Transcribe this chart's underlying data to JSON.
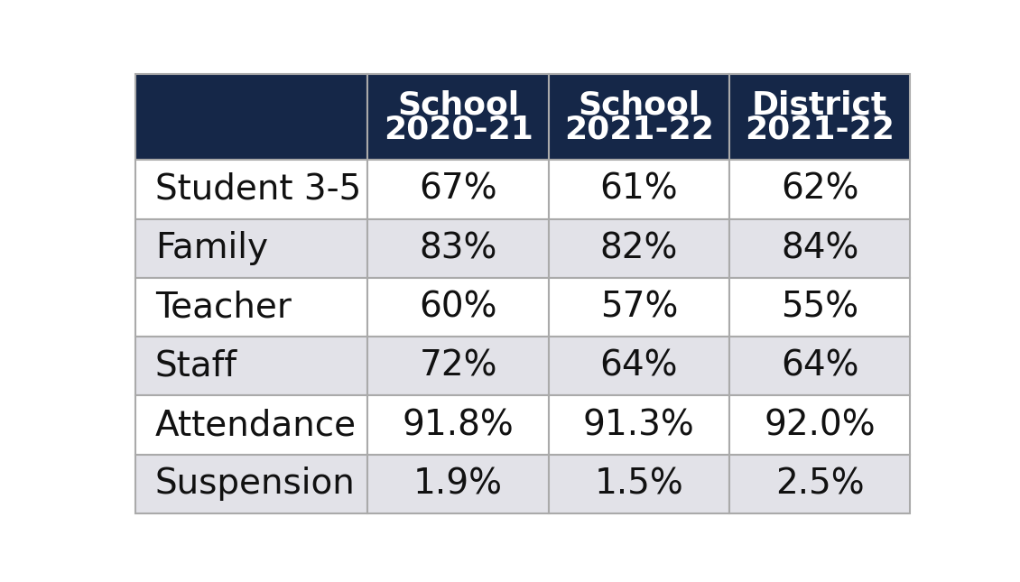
{
  "header_bg_color": "#152748",
  "header_text_color": "#ffffff",
  "row_labels": [
    "Student 3-5",
    "Family",
    "Teacher",
    "Staff",
    "Attendance",
    "Suspension"
  ],
  "col_headers_line1": [
    "School",
    "School",
    "District"
  ],
  "col_headers_line2": [
    "2020-21",
    "2021-22",
    "2021-22"
  ],
  "values": [
    [
      "67%",
      "61%",
      "62%"
    ],
    [
      "83%",
      "82%",
      "84%"
    ],
    [
      "60%",
      "57%",
      "55%"
    ],
    [
      "72%",
      "64%",
      "64%"
    ],
    [
      "91.8%",
      "91.3%",
      "92.0%"
    ],
    [
      "1.9%",
      "1.5%",
      "2.5%"
    ]
  ],
  "row_bg_even": "#ffffff",
  "row_bg_odd": "#e2e2e8",
  "data_text_color": "#111111",
  "border_color": "#aaaaaa",
  "header_fontsize": 26,
  "label_fontsize": 28,
  "data_fontsize": 28,
  "fig_bg_color": "#ffffff",
  "fig_width": 11.3,
  "fig_height": 6.45,
  "dpi": 100
}
